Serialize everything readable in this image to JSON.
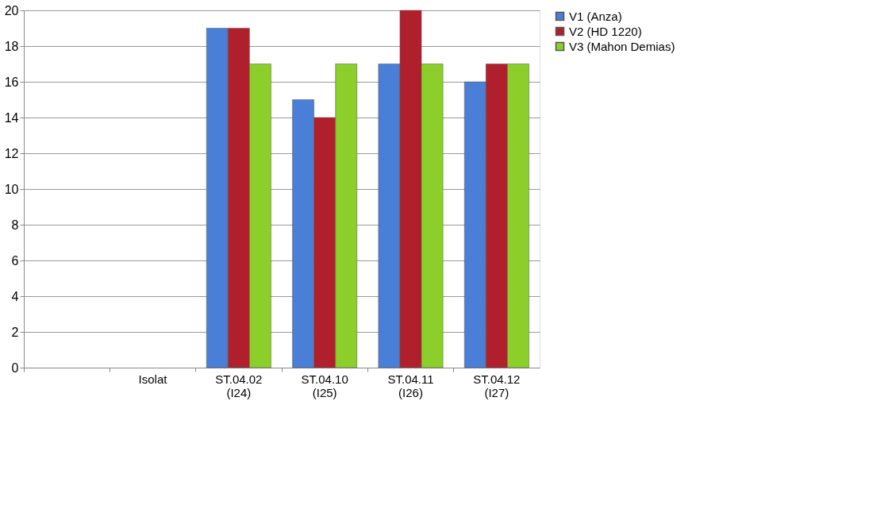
{
  "chart_data": {
    "type": "bar",
    "categories": [
      null,
      "Isolat",
      "ST.04.02 (I24)",
      "ST.04.10 (I25)",
      "ST.04.11 (I26)",
      "ST.04.12 (I27)"
    ],
    "series": [
      {
        "name": "V1 (Anza)",
        "color": "#4a7fd8",
        "values": [
          null,
          null,
          19,
          15,
          17,
          16
        ]
      },
      {
        "name": "V2 (HD 1220)",
        "color": "#b0202c",
        "values": [
          null,
          null,
          19,
          14,
          20,
          17
        ]
      },
      {
        "name": "V3 (Mahon Demias)",
        "color": "#8ccf2a",
        "values": [
          null,
          null,
          17,
          17,
          17,
          17
        ]
      }
    ],
    "ylim": [
      0,
      20
    ],
    "yticks": [
      0,
      2,
      4,
      6,
      8,
      10,
      12,
      14,
      16,
      18,
      20
    ],
    "grid": "y",
    "legend": "right"
  }
}
